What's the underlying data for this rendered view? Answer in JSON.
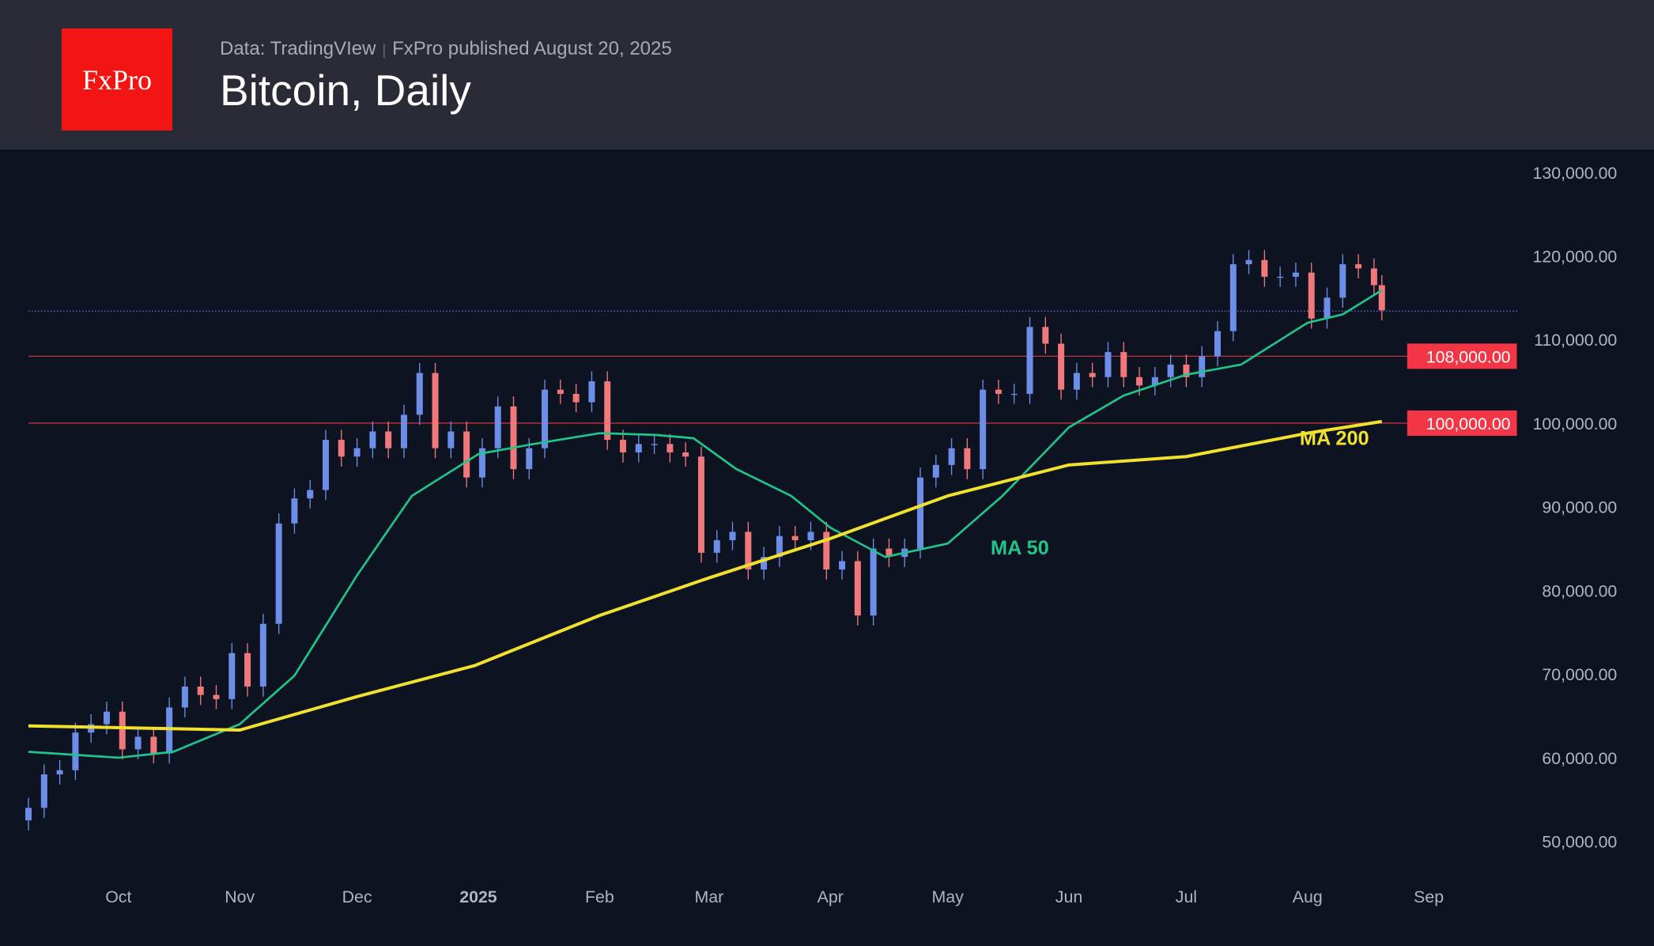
{
  "header": {
    "logo_text": "FxPro",
    "source": "Data: TradingVIew",
    "published": "FxPro published August 20, 2025",
    "title": "Bitcoin, Daily"
  },
  "colors": {
    "up": "#6d8ee8",
    "down": "#f0787a",
    "ma50": "#1fc58a",
    "ma200": "#f2e02f",
    "level": "#f23645",
    "last_price": "#5b7fd6",
    "header_bg": "#292b37",
    "chart_bg": "#0d1320",
    "logo_bg": "#f31414"
  },
  "chart_data": {
    "type": "candlestick",
    "title": "Bitcoin, Daily",
    "y_ticks": [
      "50,000.00",
      "60,000.00",
      "70,000.00",
      "80,000.00",
      "90,000.00",
      "100,000.00",
      "110,000.00",
      "120,000.00",
      "130,000.00"
    ],
    "ylim": [
      45000,
      132000
    ],
    "x_ticks": [
      {
        "label": "Oct",
        "date": "2024-10-01"
      },
      {
        "label": "Nov",
        "date": "2024-11-01"
      },
      {
        "label": "Dec",
        "date": "2024-12-01"
      },
      {
        "label": "2025",
        "date": "2025-01-01",
        "bold": true
      },
      {
        "label": "Feb",
        "date": "2025-02-01"
      },
      {
        "label": "Mar",
        "date": "2025-03-01"
      },
      {
        "label": "Apr",
        "date": "2025-04-01"
      },
      {
        "label": "May",
        "date": "2025-05-01"
      },
      {
        "label": "Jun",
        "date": "2025-06-01"
      },
      {
        "label": "Jul",
        "date": "2025-07-01"
      },
      {
        "label": "Aug",
        "date": "2025-08-01"
      },
      {
        "label": "Sep",
        "date": "2025-09-01"
      }
    ],
    "xlim": [
      "2024-09-08",
      "2025-09-20"
    ],
    "closes": [
      [
        "2024-09-08",
        54000
      ],
      [
        "2024-09-12",
        58000
      ],
      [
        "2024-09-16",
        58500
      ],
      [
        "2024-09-20",
        63000
      ],
      [
        "2024-09-24",
        64000
      ],
      [
        "2024-09-28",
        65500
      ],
      [
        "2024-10-02",
        61000
      ],
      [
        "2024-10-06",
        62500
      ],
      [
        "2024-10-10",
        60500
      ],
      [
        "2024-10-14",
        66000
      ],
      [
        "2024-10-18",
        68500
      ],
      [
        "2024-10-22",
        67500
      ],
      [
        "2024-10-26",
        67000
      ],
      [
        "2024-10-30",
        72500
      ],
      [
        "2024-11-03",
        68500
      ],
      [
        "2024-11-07",
        76000
      ],
      [
        "2024-11-11",
        88000
      ],
      [
        "2024-11-15",
        91000
      ],
      [
        "2024-11-19",
        92000
      ],
      [
        "2024-11-23",
        98000
      ],
      [
        "2024-11-27",
        96000
      ],
      [
        "2024-12-01",
        97000
      ],
      [
        "2024-12-05",
        99000
      ],
      [
        "2024-12-09",
        97000
      ],
      [
        "2024-12-13",
        101000
      ],
      [
        "2024-12-17",
        106000
      ],
      [
        "2024-12-21",
        97000
      ],
      [
        "2024-12-25",
        99000
      ],
      [
        "2024-12-29",
        93500
      ],
      [
        "2025-01-02",
        97000
      ],
      [
        "2025-01-06",
        102000
      ],
      [
        "2025-01-10",
        94500
      ],
      [
        "2025-01-14",
        97000
      ],
      [
        "2025-01-18",
        104000
      ],
      [
        "2025-01-22",
        103500
      ],
      [
        "2025-01-26",
        102500
      ],
      [
        "2025-01-30",
        105000
      ],
      [
        "2025-02-03",
        98000
      ],
      [
        "2025-02-07",
        96500
      ],
      [
        "2025-02-11",
        97500
      ],
      [
        "2025-02-15",
        97500
      ],
      [
        "2025-02-19",
        96500
      ],
      [
        "2025-02-23",
        96000
      ],
      [
        "2025-02-27",
        84500
      ],
      [
        "2025-03-03",
        86000
      ],
      [
        "2025-03-07",
        87000
      ],
      [
        "2025-03-11",
        82500
      ],
      [
        "2025-03-15",
        84000
      ],
      [
        "2025-03-19",
        86500
      ],
      [
        "2025-03-23",
        86000
      ],
      [
        "2025-03-27",
        87000
      ],
      [
        "2025-03-31",
        82500
      ],
      [
        "2025-04-04",
        83500
      ],
      [
        "2025-04-08",
        77000
      ],
      [
        "2025-04-12",
        85000
      ],
      [
        "2025-04-16",
        84000
      ],
      [
        "2025-04-20",
        85000
      ],
      [
        "2025-04-24",
        93500
      ],
      [
        "2025-04-28",
        95000
      ],
      [
        "2025-05-02",
        97000
      ],
      [
        "2025-05-06",
        94500
      ],
      [
        "2025-05-10",
        104000
      ],
      [
        "2025-05-14",
        103500
      ],
      [
        "2025-05-18",
        103500
      ],
      [
        "2025-05-22",
        111500
      ],
      [
        "2025-05-26",
        109500
      ],
      [
        "2025-05-30",
        104000
      ],
      [
        "2025-06-03",
        106000
      ],
      [
        "2025-06-07",
        105500
      ],
      [
        "2025-06-11",
        108500
      ],
      [
        "2025-06-15",
        105500
      ],
      [
        "2025-06-19",
        104500
      ],
      [
        "2025-06-23",
        105500
      ],
      [
        "2025-06-27",
        107000
      ],
      [
        "2025-07-01",
        105500
      ],
      [
        "2025-07-05",
        108000
      ],
      [
        "2025-07-09",
        111000
      ],
      [
        "2025-07-13",
        119000
      ],
      [
        "2025-07-17",
        119500
      ],
      [
        "2025-07-21",
        117500
      ],
      [
        "2025-07-25",
        117500
      ],
      [
        "2025-07-29",
        118000
      ],
      [
        "2025-08-02",
        112500
      ],
      [
        "2025-08-06",
        115000
      ],
      [
        "2025-08-10",
        119000
      ],
      [
        "2025-08-14",
        118500
      ],
      [
        "2025-08-18",
        116500
      ],
      [
        "2025-08-20",
        113500
      ]
    ],
    "series": [
      {
        "name": "MA 50",
        "points": [
          [
            "2024-09-08",
            60700
          ],
          [
            "2024-10-01",
            60000
          ],
          [
            "2024-10-15",
            60700
          ],
          [
            "2024-11-01",
            64000
          ],
          [
            "2024-11-15",
            69800
          ],
          [
            "2024-12-01",
            81800
          ],
          [
            "2024-12-15",
            91300
          ],
          [
            "2025-01-01",
            96300
          ],
          [
            "2025-01-15",
            97500
          ],
          [
            "2025-02-01",
            98800
          ],
          [
            "2025-02-15",
            98600
          ],
          [
            "2025-02-25",
            98200
          ],
          [
            "2025-03-08",
            94500
          ],
          [
            "2025-03-22",
            91300
          ],
          [
            "2025-04-01",
            87500
          ],
          [
            "2025-04-15",
            84000
          ],
          [
            "2025-05-01",
            85600
          ],
          [
            "2025-05-15",
            91300
          ],
          [
            "2025-06-01",
            99500
          ],
          [
            "2025-06-15",
            103300
          ],
          [
            "2025-07-01",
            105800
          ],
          [
            "2025-07-15",
            107000
          ],
          [
            "2025-08-01",
            112000
          ],
          [
            "2025-08-10",
            113000
          ],
          [
            "2025-08-20",
            115900
          ]
        ]
      },
      {
        "name": "MA 200",
        "points": [
          [
            "2024-09-08",
            63800
          ],
          [
            "2024-11-01",
            63300
          ],
          [
            "2024-12-01",
            67300
          ],
          [
            "2024-12-31",
            71000
          ],
          [
            "2025-02-01",
            77000
          ],
          [
            "2025-03-01",
            81500
          ],
          [
            "2025-04-01",
            86200
          ],
          [
            "2025-05-01",
            91300
          ],
          [
            "2025-06-01",
            95000
          ],
          [
            "2025-07-01",
            96000
          ],
          [
            "2025-08-01",
            98800
          ],
          [
            "2025-08-20",
            100200
          ]
        ]
      }
    ],
    "levels": [
      {
        "value": 108000,
        "label": "108,000.00"
      },
      {
        "value": 100000,
        "label": "100,000.00"
      }
    ],
    "last_price": 113400,
    "annotations": [
      {
        "text": "MA 50",
        "date": "2025-05-12",
        "value": 84300
      },
      {
        "text": "MA 200",
        "date": "2025-07-30",
        "value": 97400
      }
    ],
    "grid": false
  }
}
